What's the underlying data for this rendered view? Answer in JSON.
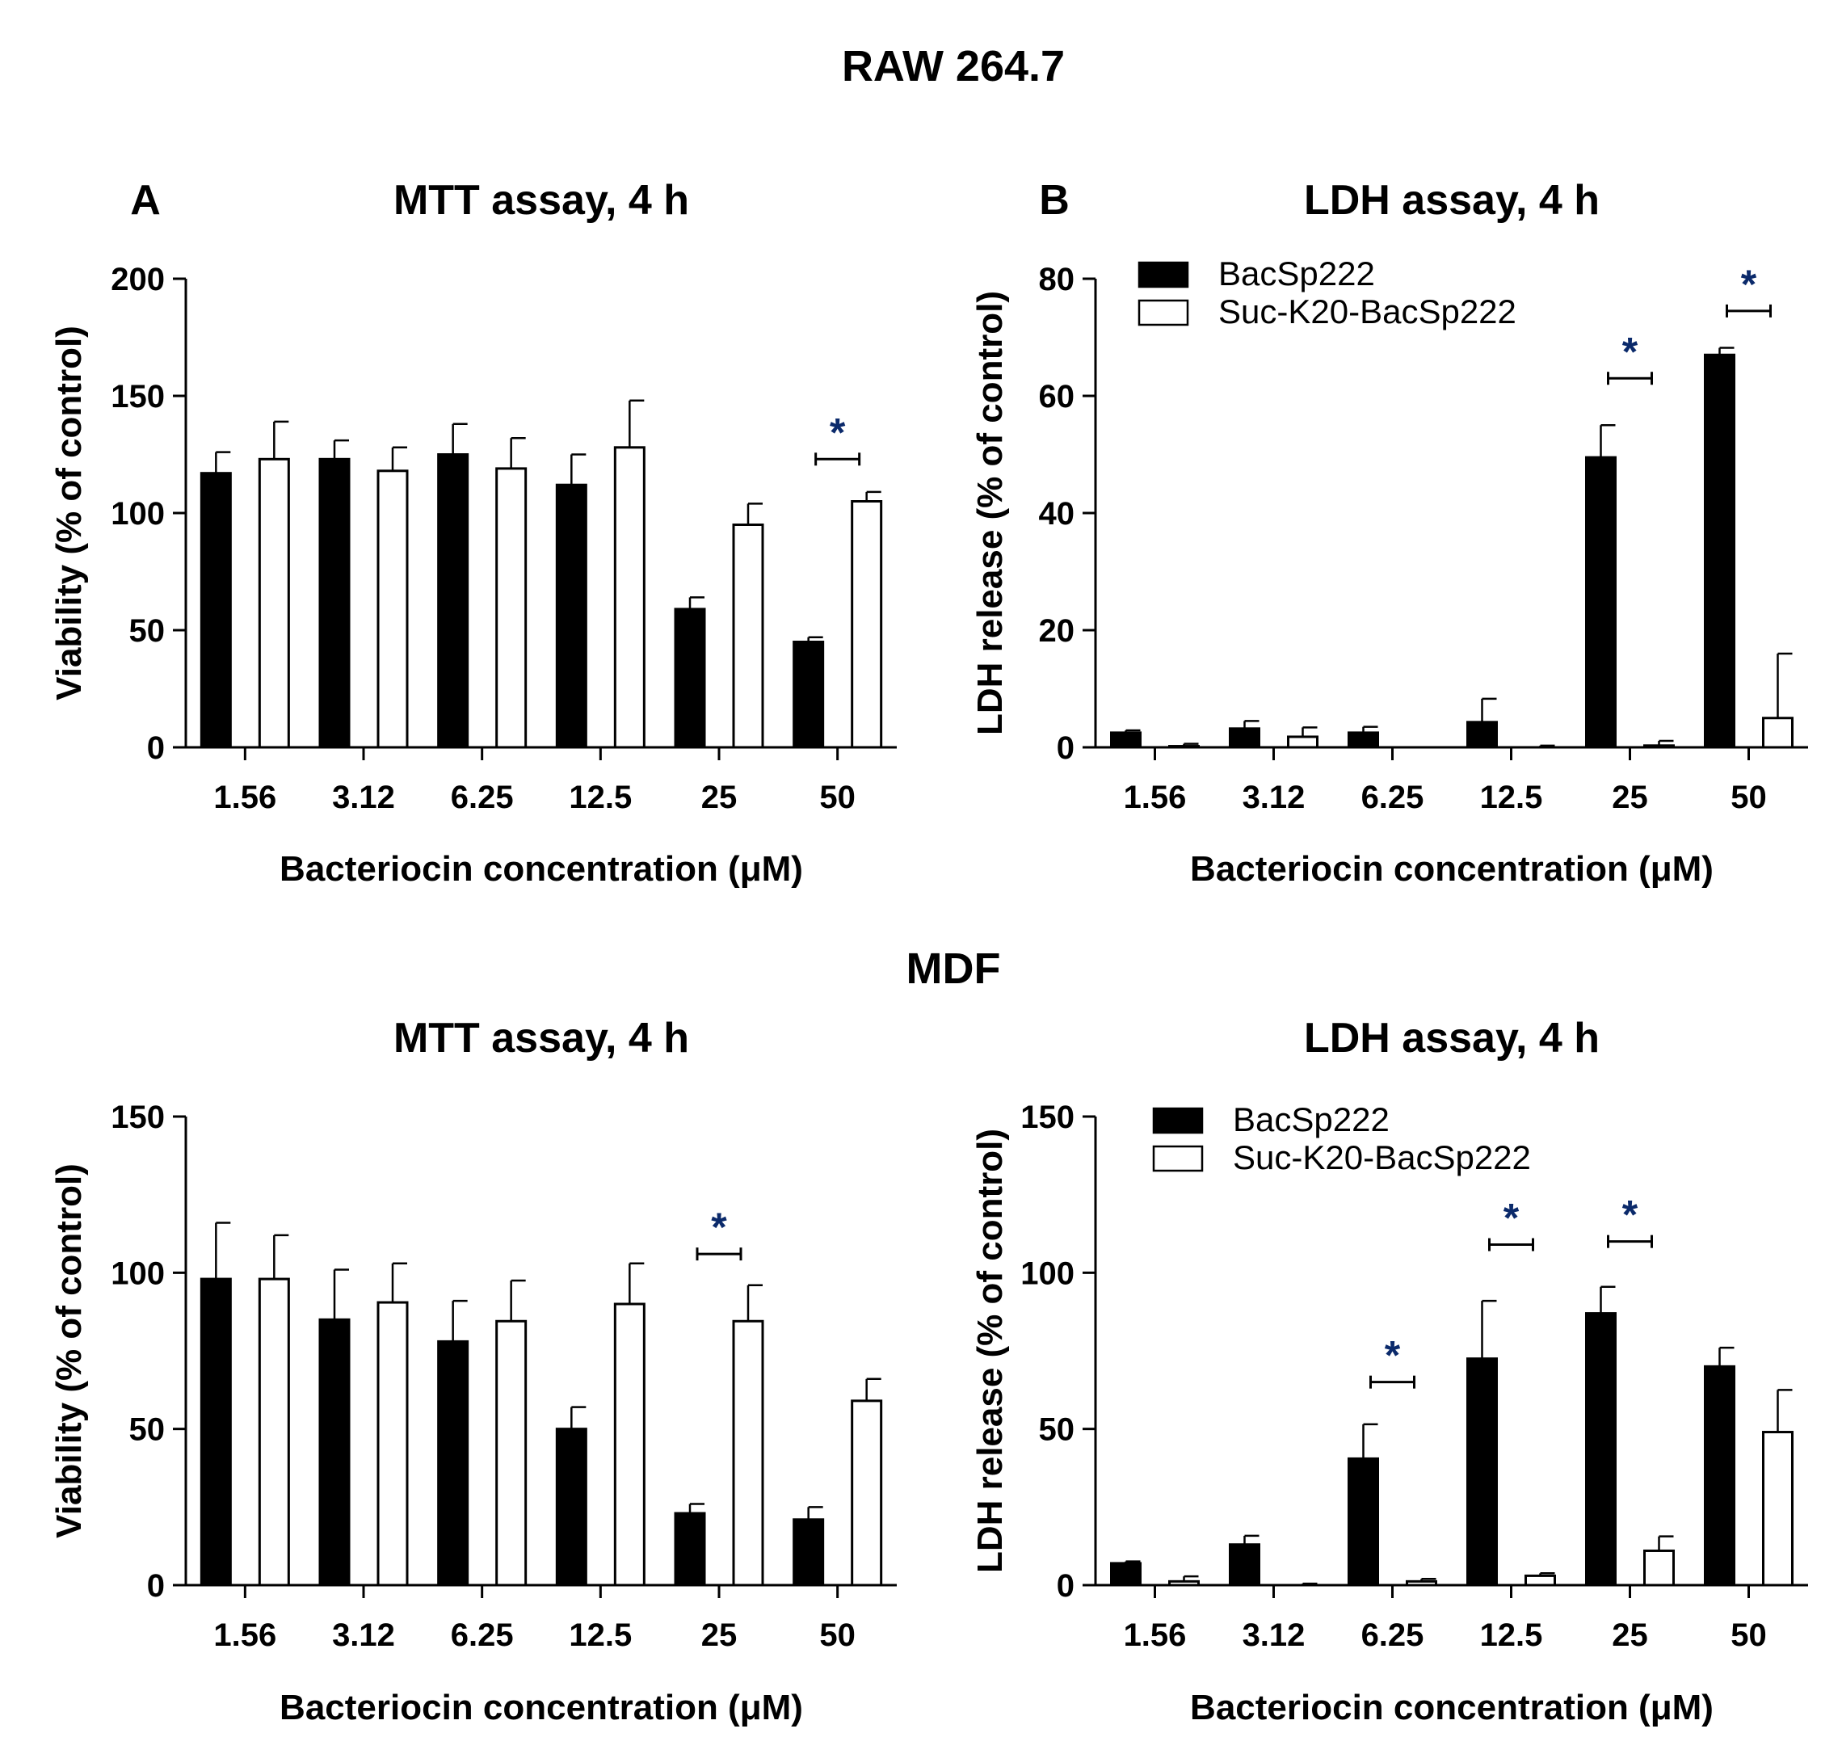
{
  "figure": {
    "sections": [
      {
        "title": "RAW 264.7"
      },
      {
        "title": "MDF"
      }
    ]
  },
  "legend": {
    "series": [
      "BacSp222",
      "Suc-K20-BacSp222"
    ],
    "colors": [
      "#000000",
      "#ffffff"
    ]
  },
  "chart_data": [
    {
      "panel": "A",
      "section": "RAW 264.7",
      "type": "bar",
      "title": "MTT assay, 4 h",
      "xlabel": "Bacteriocin concentration (μM)",
      "ylabel": "Viability (% of control)",
      "categories": [
        "1.56",
        "3.12",
        "6.25",
        "12.5",
        "25",
        "50"
      ],
      "ylim": [
        0,
        200
      ],
      "yticks": [
        0,
        50,
        100,
        150,
        200
      ],
      "legend": false,
      "series": [
        {
          "name": "BacSp222",
          "values": [
            117,
            123,
            125,
            112,
            59,
            45
          ],
          "errors": [
            9,
            8,
            13,
            13,
            5,
            2
          ]
        },
        {
          "name": "Suc-K20-BacSp222",
          "values": [
            123,
            118,
            119,
            128,
            95,
            105
          ],
          "errors": [
            16,
            10,
            13,
            20,
            9,
            4
          ]
        }
      ],
      "significance": [
        {
          "category": "50",
          "label": "*",
          "level": 123
        }
      ]
    },
    {
      "panel": "B",
      "section": "RAW 264.7",
      "type": "bar",
      "title": "LDH assay, 4 h",
      "xlabel": "Bacteriocin concentration (μM)",
      "ylabel": "LDH release (% of control)",
      "categories": [
        "1.56",
        "3.12",
        "6.25",
        "12.5",
        "25",
        "50"
      ],
      "ylim": [
        0,
        80
      ],
      "yticks": [
        0,
        20,
        40,
        60,
        80
      ],
      "legend": true,
      "legend_position": "top-left",
      "series": [
        {
          "name": "BacSp222",
          "values": [
            2.5,
            3.2,
            2.5,
            4.3,
            49.5,
            67
          ],
          "errors": [
            0.4,
            1.3,
            1.0,
            4.0,
            5.5,
            1.2
          ]
        },
        {
          "name": "Suc-K20-BacSp222",
          "values": [
            0.2,
            1.8,
            0,
            0,
            0.3,
            5
          ],
          "errors": [
            0.4,
            1.6,
            0,
            0.3,
            0.8,
            11
          ]
        }
      ],
      "significance": [
        {
          "category": "25",
          "label": "*",
          "level": 63
        },
        {
          "category": "50",
          "label": "*",
          "level": 74.5
        }
      ]
    },
    {
      "section": "MDF",
      "type": "bar",
      "title": "MTT assay, 4 h",
      "xlabel": "Bacteriocin concentration (μM)",
      "ylabel": "Viability (% of control)",
      "categories": [
        "1.56",
        "3.12",
        "6.25",
        "12.5",
        "25",
        "50"
      ],
      "ylim": [
        0,
        150
      ],
      "yticks": [
        0,
        50,
        100,
        150
      ],
      "legend": false,
      "series": [
        {
          "name": "BacSp222",
          "values": [
            98,
            85,
            78,
            50,
            23,
            21
          ],
          "errors": [
            18,
            16,
            13,
            7,
            3,
            4
          ]
        },
        {
          "name": "Suc-K20-BacSp222",
          "values": [
            98,
            90.5,
            84.5,
            90,
            84.5,
            59
          ],
          "errors": [
            14,
            12.5,
            13,
            13,
            11.5,
            7
          ]
        }
      ],
      "significance": [
        {
          "category": "25",
          "label": "*",
          "level": 106
        }
      ]
    },
    {
      "section": "MDF",
      "type": "bar",
      "title": "LDH assay, 4 h",
      "xlabel": "Bacteriocin concentration (μM)",
      "ylabel": "LDH release (% of control)",
      "categories": [
        "1.56",
        "3.12",
        "6.25",
        "12.5",
        "25",
        "50"
      ],
      "ylim": [
        0,
        150
      ],
      "yticks": [
        0,
        50,
        100,
        150
      ],
      "legend": true,
      "legend_position": "top-left",
      "series": [
        {
          "name": "BacSp222",
          "values": [
            7,
            13,
            40.5,
            72.5,
            87,
            70
          ],
          "errors": [
            0.6,
            2.8,
            11,
            18.5,
            8.5,
            6
          ]
        },
        {
          "name": "Suc-K20-BacSp222",
          "values": [
            1.2,
            0,
            1.2,
            3,
            11,
            49
          ],
          "errors": [
            1.6,
            0.5,
            0.8,
            0.8,
            4.6,
            13.5
          ]
        }
      ],
      "significance": [
        {
          "category": "6.25",
          "label": "*",
          "level": 65
        },
        {
          "category": "12.5",
          "label": "*",
          "level": 109
        },
        {
          "category": "25",
          "label": "*",
          "level": 110
        }
      ]
    }
  ]
}
